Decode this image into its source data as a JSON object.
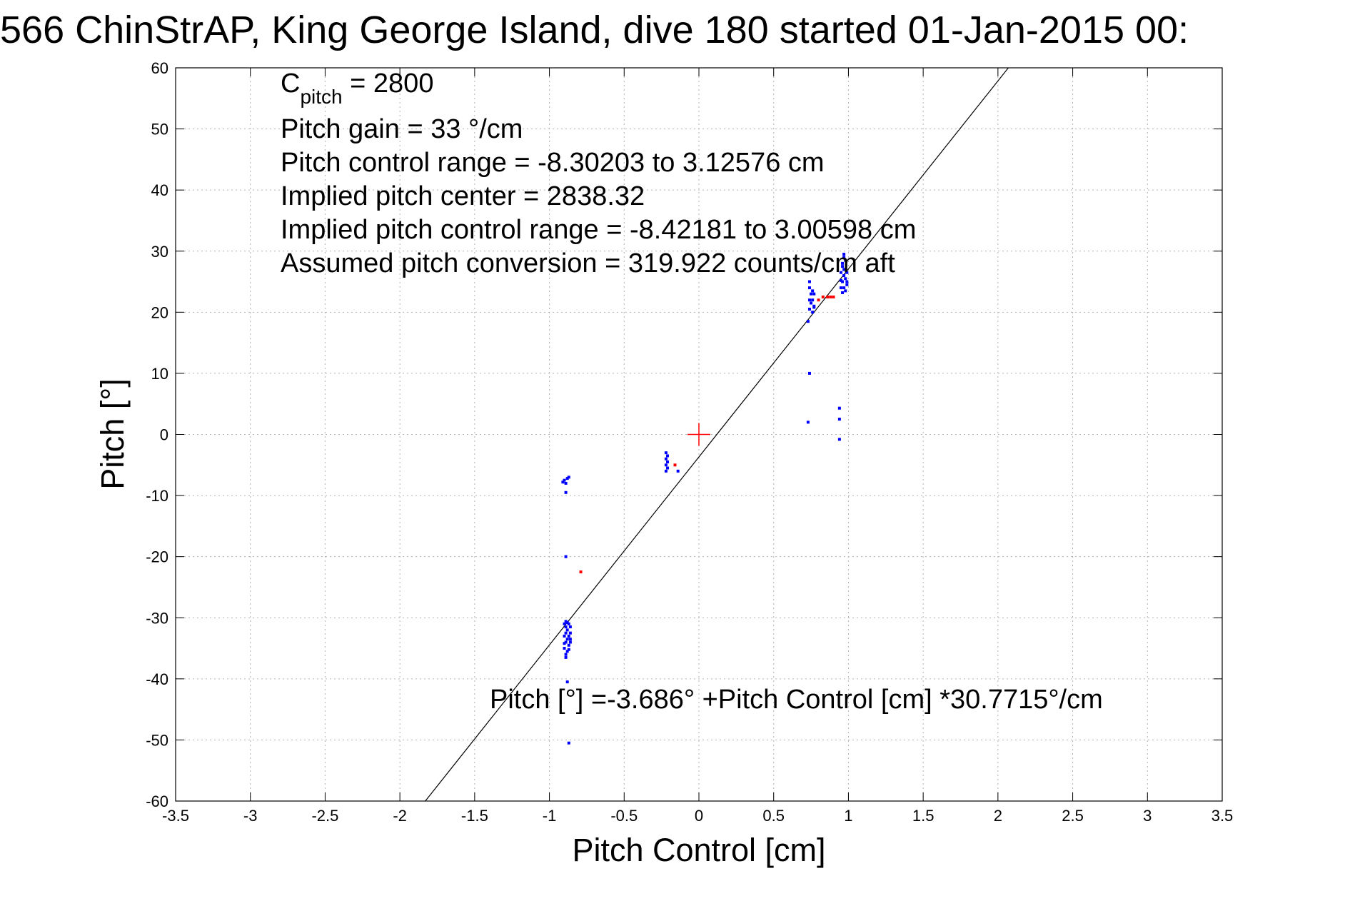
{
  "chart_data": {
    "type": "scatter",
    "title": "566 ChinStrAP, King George Island, dive 180 started 01-Jan-2015 00:",
    "xlabel": "Pitch Control [cm]",
    "ylabel": "Pitch [°]",
    "xlim": [
      -3.5,
      3.5
    ],
    "ylim": [
      -60,
      60
    ],
    "xticks": [
      -3.5,
      -3,
      -2.5,
      -2,
      -1.5,
      -1,
      -0.5,
      0,
      0.5,
      1,
      1.5,
      2,
      2.5,
      3,
      3.5
    ],
    "xtick_labels": [
      "-3.5",
      "-3",
      "-2.5",
      "-2",
      "-1.5",
      "-1",
      "-0.5",
      "0",
      "0.5",
      "1",
      "1.5",
      "2",
      "2.5",
      "3",
      "3.5"
    ],
    "yticks": [
      -60,
      -50,
      -40,
      -30,
      -20,
      -10,
      0,
      10,
      20,
      30,
      40,
      50,
      60
    ],
    "ytick_labels": [
      "-60",
      "-50",
      "-40",
      "-30",
      "-20",
      "-10",
      "0",
      "10",
      "20",
      "30",
      "40",
      "50",
      "60"
    ],
    "grid": true,
    "annotations": {
      "c_pitch_base": "C",
      "c_pitch_sub": "pitch",
      "c_pitch_value": " = 2800",
      "lines": [
        "Pitch gain = 33 °/cm",
        "Pitch control range = -8.30203 to 3.12576 cm",
        "Implied pitch center = 2838.32",
        "Implied pitch control range = -8.42181 to 3.00598 cm",
        "Assumed pitch conversion = 319.922 counts/cm aft"
      ],
      "fit_equation": "Pitch [°] =-3.686° +Pitch Control [cm] *30.7715°/cm"
    },
    "fit_line": {
      "intercept": -3.686,
      "slope": 30.7715,
      "color": "#000000"
    },
    "center_marker": {
      "x": 0,
      "y": 0,
      "color": "#ff0000"
    },
    "series": [
      {
        "color": "#0000ff",
        "points": [
          [
            -0.9,
            -7.5
          ],
          [
            -0.89,
            -8
          ],
          [
            -0.91,
            -7.8
          ],
          [
            -0.88,
            -7.2
          ],
          [
            -0.87,
            -7
          ],
          [
            -0.89,
            -9.5
          ],
          [
            -0.89,
            -20
          ],
          [
            -0.88,
            -40.5
          ],
          [
            -0.87,
            -50.5
          ],
          [
            -0.9,
            -31
          ],
          [
            -0.89,
            -31.5
          ],
          [
            -0.88,
            -32
          ],
          [
            -0.89,
            -32.5
          ],
          [
            -0.9,
            -33
          ],
          [
            -0.88,
            -33.5
          ],
          [
            -0.89,
            -34
          ],
          [
            -0.87,
            -34.5
          ],
          [
            -0.9,
            -35
          ],
          [
            -0.88,
            -35.5
          ],
          [
            -0.89,
            -36
          ],
          [
            -0.89,
            -36.5
          ],
          [
            -0.87,
            -31
          ],
          [
            -0.86,
            -31.5
          ],
          [
            -0.86,
            -32.5
          ],
          [
            -0.87,
            -33
          ],
          [
            -0.86,
            -33.5
          ],
          [
            -0.86,
            -34
          ],
          [
            -0.88,
            -30.8
          ],
          [
            -0.9,
            -34.2
          ],
          [
            -0.87,
            -35.2
          ],
          [
            -0.89,
            -30.6
          ],
          [
            -0.22,
            -3
          ],
          [
            -0.21,
            -3.5
          ],
          [
            -0.22,
            -4
          ],
          [
            -0.21,
            -4.5
          ],
          [
            -0.22,
            -5
          ],
          [
            -0.21,
            -5.5
          ],
          [
            -0.22,
            -6
          ],
          [
            -0.14,
            -6
          ],
          [
            0.74,
            25
          ],
          [
            0.74,
            24
          ],
          [
            0.75,
            23
          ],
          [
            0.74,
            22
          ],
          [
            0.75,
            21.5
          ],
          [
            0.74,
            20.5
          ],
          [
            0.73,
            18.5
          ],
          [
            0.76,
            23.5
          ],
          [
            0.77,
            23
          ],
          [
            0.76,
            22
          ],
          [
            0.77,
            21
          ],
          [
            0.76,
            20
          ],
          [
            0.77,
            20.8
          ],
          [
            0.74,
            10
          ],
          [
            0.73,
            2
          ],
          [
            0.94,
            4.3
          ],
          [
            0.94,
            2.5
          ],
          [
            0.94,
            -0.8
          ],
          [
            0.95,
            24
          ],
          [
            0.96,
            25
          ],
          [
            0.97,
            26
          ],
          [
            0.98,
            27
          ],
          [
            0.96,
            28
          ],
          [
            0.97,
            29
          ],
          [
            0.98,
            23.5
          ],
          [
            0.99,
            24.5
          ],
          [
            0.95,
            26.5
          ],
          [
            0.96,
            27.5
          ],
          [
            0.97,
            24
          ],
          [
            0.98,
            25.5
          ],
          [
            0.99,
            26.5
          ],
          [
            0.96,
            23.2
          ],
          [
            0.97,
            29.5
          ],
          [
            0.95,
            25.2
          ],
          [
            0.98,
            28.5
          ],
          [
            0.99,
            25
          ],
          [
            0.97,
            27
          ]
        ]
      },
      {
        "color": "#ff0000",
        "points": [
          [
            -0.79,
            -22.5
          ],
          [
            -0.16,
            -5
          ],
          [
            0.83,
            22.5
          ],
          [
            0.86,
            22.5
          ],
          [
            0.88,
            22.5
          ],
          [
            0.9,
            22.5
          ],
          [
            0.8,
            22
          ]
        ]
      }
    ]
  }
}
